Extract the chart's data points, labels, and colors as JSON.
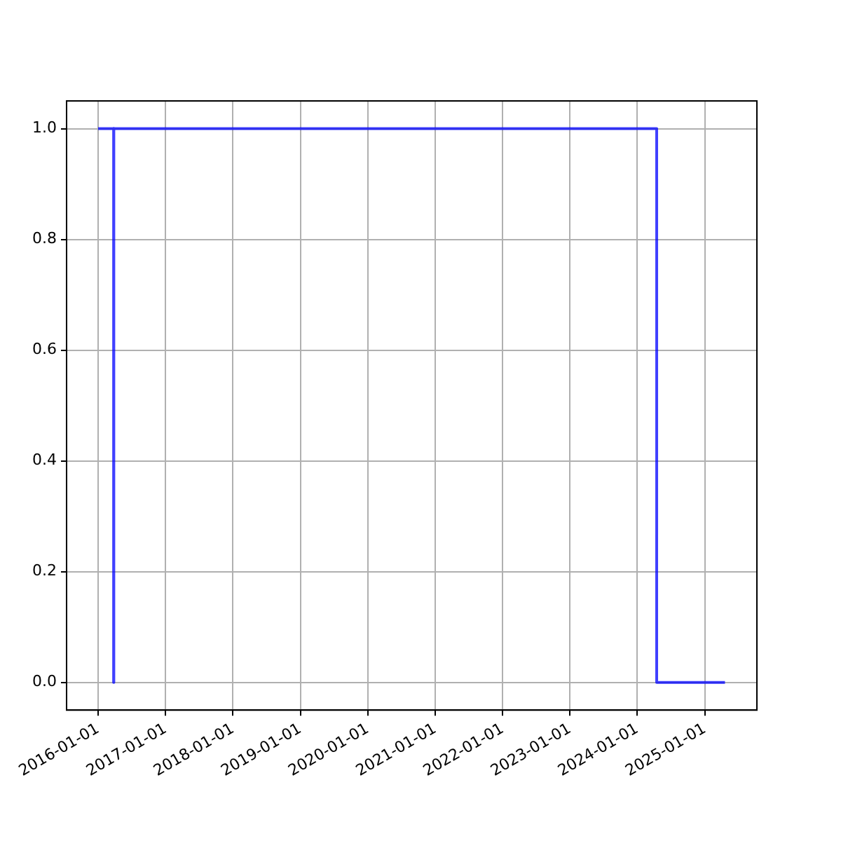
{
  "chart_data": {
    "type": "step",
    "x": [
      "2016-01-01",
      "2016-03-25",
      "2016-03-26",
      "2024-04-15",
      "2025-04-20"
    ],
    "series": [
      {
        "color": "#0000ff",
        "values": [
          1,
          0,
          1,
          0,
          0
        ]
      }
    ],
    "xlim": [
      "2015-07-14",
      "2025-10-10"
    ],
    "xticks": [
      "2016-01-01",
      "2017-01-01",
      "2018-01-01",
      "2019-01-01",
      "2020-01-01",
      "2021-01-01",
      "2022-01-01",
      "2023-01-01",
      "2024-01-01",
      "2025-01-01"
    ],
    "ylim": [
      -0.05,
      1.05
    ],
    "yticks": [
      {
        "value": 0,
        "label": "0.0"
      },
      {
        "value": 0.2,
        "label": "0.2"
      },
      {
        "value": 0.4,
        "label": "0.4"
      },
      {
        "value": 0.6,
        "label": "0.6"
      },
      {
        "value": 0.8,
        "label": "0.8"
      },
      {
        "value": 1,
        "label": "1.0"
      }
    ],
    "grid": true,
    "legend": false,
    "marker": "none",
    "line_style": "solid"
  }
}
